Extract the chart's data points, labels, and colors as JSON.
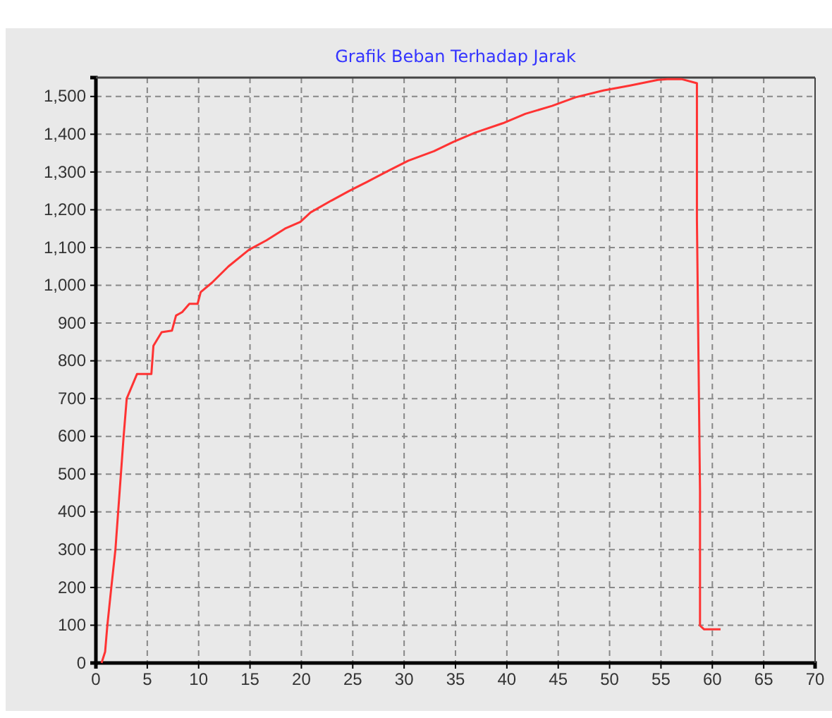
{
  "chart_data": {
    "type": "line",
    "title": "Grafik Beban Terhadap Jarak",
    "x": [
      0.55,
      0.9,
      1.1,
      1.5,
      1.9,
      2.3,
      2.7,
      3.0,
      4.0,
      5.4,
      5.6,
      6.4,
      7.4,
      7.8,
      8.4,
      9.1,
      9.9,
      10.2,
      11.3,
      12.9,
      14.9,
      16.6,
      18.4,
      19.9,
      20.9,
      22.9,
      24.6,
      26.4,
      28.6,
      30.4,
      32.9,
      34.8,
      36.9,
      39.6,
      41.8,
      44.4,
      46.7,
      49.4,
      52.0,
      54.7,
      55.6,
      57.0,
      58.5,
      58.5,
      58.8,
      58.8,
      59.2,
      60.8
    ],
    "series": [
      {
        "color": "#ff3333",
        "values": [
          0,
          30,
          95,
          200,
          300,
          450,
          600,
          700,
          765,
          765,
          840,
          876,
          880,
          920,
          929,
          951,
          951,
          982,
          1007,
          1050,
          1094,
          1119,
          1150,
          1168,
          1193,
          1224,
          1249,
          1274,
          1305,
          1330,
          1355,
          1380,
          1404,
          1429,
          1454,
          1475,
          1498,
          1516,
          1529,
          1544,
          1546,
          1546,
          1535,
          1174,
          454,
          99,
          89,
          89
        ]
      }
    ],
    "xlim": [
      0,
      70
    ],
    "xticks": [
      0,
      5,
      10,
      15,
      20,
      25,
      30,
      35,
      40,
      45,
      50,
      55,
      60,
      65,
      70
    ],
    "ylim": [
      0,
      1550
    ],
    "yticks": [
      {
        "value": 0,
        "label": "0"
      },
      {
        "value": 100,
        "label": "100"
      },
      {
        "value": 200,
        "label": "200"
      },
      {
        "value": 300,
        "label": "300"
      },
      {
        "value": 400,
        "label": "400"
      },
      {
        "value": 500,
        "label": "500"
      },
      {
        "value": 600,
        "label": "600"
      },
      {
        "value": 700,
        "label": "700"
      },
      {
        "value": 800,
        "label": "800"
      },
      {
        "value": 900,
        "label": "900"
      },
      {
        "value": 1000,
        "label": "1,000"
      },
      {
        "value": 1100,
        "label": "1,100"
      },
      {
        "value": 1200,
        "label": "1,200"
      },
      {
        "value": 1300,
        "label": "1,300"
      },
      {
        "value": 1400,
        "label": "1,400"
      },
      {
        "value": 1500,
        "label": "1,500"
      }
    ],
    "grid": true,
    "line_style": "solid"
  }
}
